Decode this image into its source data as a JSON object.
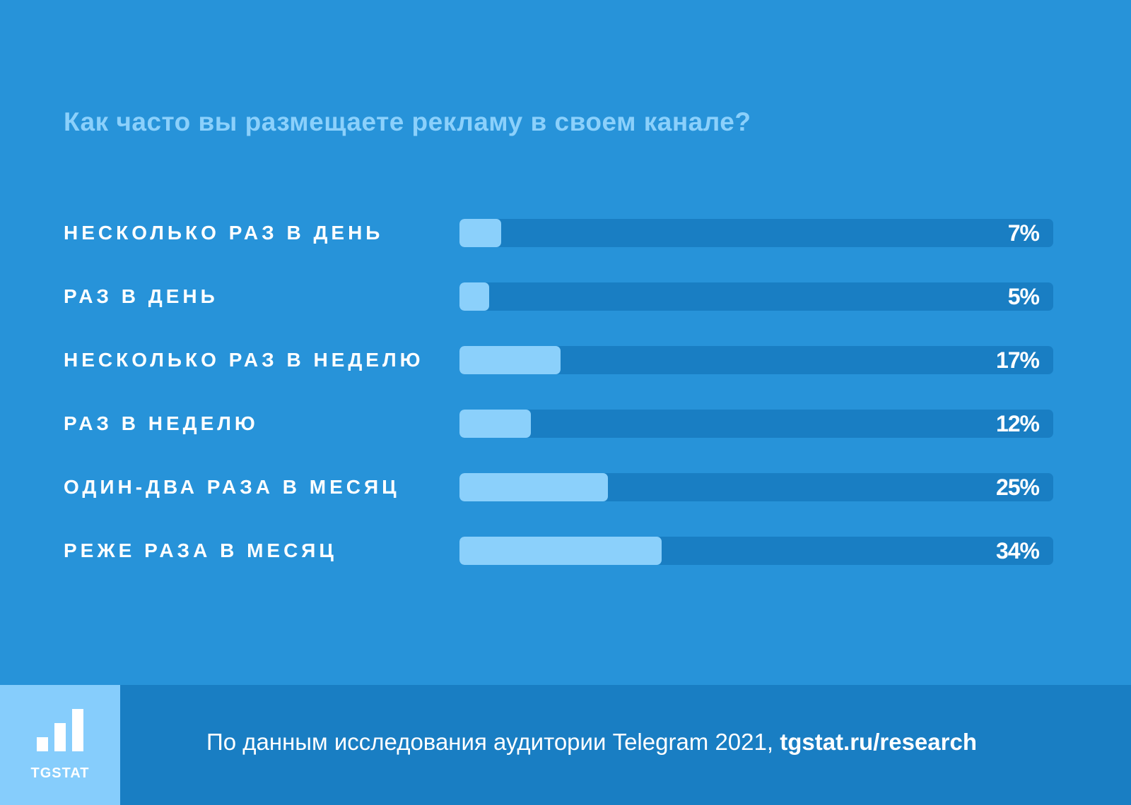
{
  "title": "Как часто вы размещаете рекламу в своем канале?",
  "chart_data": {
    "type": "bar",
    "orientation": "horizontal",
    "title": "Как часто вы размещаете рекламу в своем канале?",
    "categories": [
      "НЕСКОЛЬКО РАЗ В ДЕНЬ",
      "РАЗ В ДЕНЬ",
      "НЕСКОЛЬКО РАЗ В НЕДЕЛЮ",
      "РАЗ В НЕДЕЛЮ",
      "ОДИН-ДВА РАЗА В МЕСЯЦ",
      "РЕЖЕ РАЗА В МЕСЯЦ"
    ],
    "values": [
      7,
      5,
      17,
      12,
      25,
      34
    ],
    "value_labels": [
      "7%",
      "5%",
      "17%",
      "12%",
      "25%",
      "34%"
    ],
    "xlim": [
      0,
      100
    ],
    "grid": false,
    "colors": {
      "fill": "#8bd0fb",
      "track": "#197ec3"
    }
  },
  "footer": {
    "logo_text": "TGSTAT",
    "source_text": "По данным исследования аудитории Telegram 2021, ",
    "source_link": "tgstat.ru/research"
  },
  "colors": {
    "background": "#2793d9",
    "footer": "#197ec3",
    "logo_bg": "#86cdfc",
    "title": "#8bd0fb"
  }
}
